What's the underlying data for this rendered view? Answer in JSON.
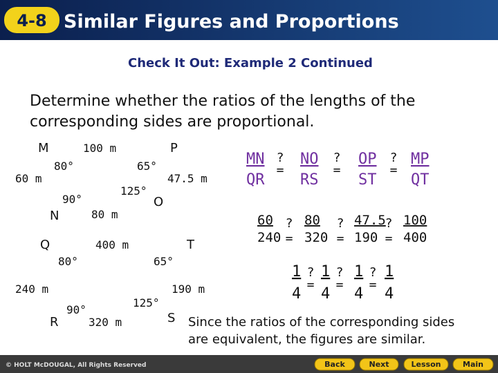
{
  "header": {
    "badge": "4-8",
    "title": "Similar Figures and Proportions"
  },
  "subtitle": "Check It Out: Example 2 Continued",
  "prompt": [
    "Determine whether the ratios of the lengths of the",
    "corresponding sides are proportional."
  ],
  "figure1": {
    "vertices": [
      "M",
      "P",
      "O",
      "N"
    ],
    "sides": [
      "100 m",
      "47.5 m",
      "80 m",
      "60 m"
    ],
    "angles": [
      "80°",
      "65°",
      "125°",
      "90°"
    ]
  },
  "figure2": {
    "vertices": [
      "Q",
      "T",
      "S",
      "R"
    ],
    "sides": [
      "400 m",
      "190 m",
      "320 m",
      "240 m"
    ],
    "angles": [
      "80°",
      "65°",
      "125°",
      "90°"
    ]
  },
  "relation": {
    "question": "?",
    "equals": "="
  },
  "ratios": {
    "names": [
      [
        "MN",
        "QR"
      ],
      [
        "NO",
        "RS"
      ],
      [
        "OP",
        "ST"
      ],
      [
        "MP",
        "QT"
      ]
    ],
    "lengths": [
      [
        "60",
        "240"
      ],
      [
        "80",
        "320"
      ],
      [
        "47.5",
        "190"
      ],
      [
        "100",
        "400"
      ]
    ],
    "simplified": [
      [
        "1",
        "4"
      ],
      [
        "1",
        "4"
      ],
      [
        "1",
        "4"
      ],
      [
        "1",
        "4"
      ]
    ]
  },
  "conclusion": [
    "Since the ratios of the corresponding sides",
    "are equivalent, the figures are similar."
  ],
  "footer": {
    "copyright": "© HOLT McDOUGAL, All Rights Reserved",
    "buttons": [
      "Back",
      "Next",
      "Lesson",
      "Main"
    ]
  }
}
